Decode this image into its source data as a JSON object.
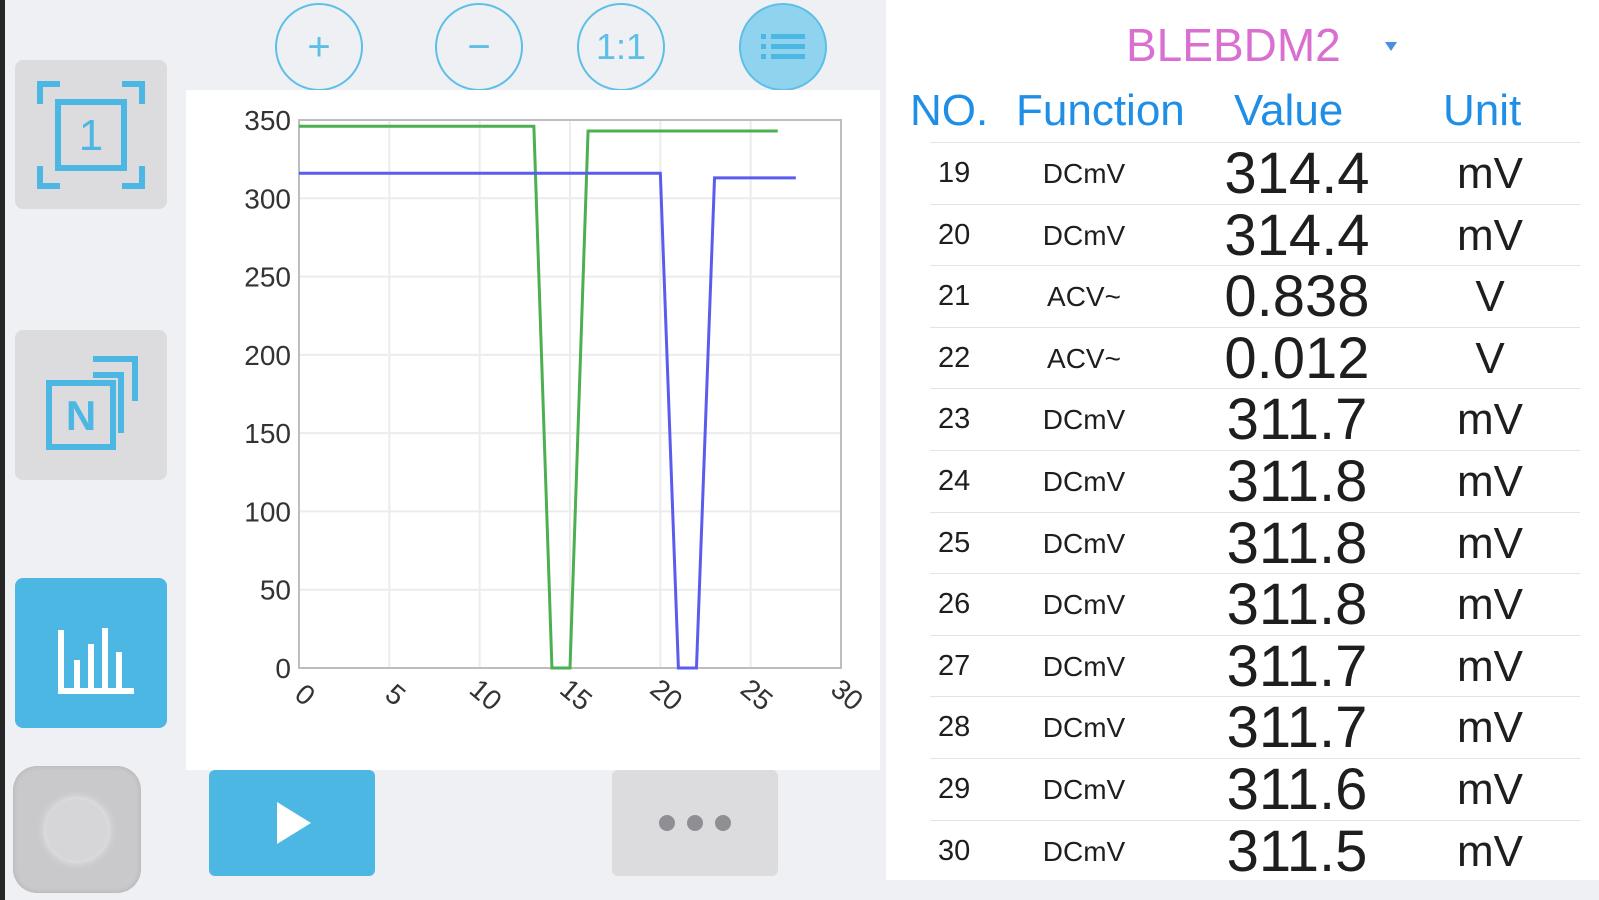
{
  "toolbar": {
    "zoom_in_label": "+",
    "zoom_out_label": "−",
    "reset_label": "1:1",
    "list_icon": "list-icon"
  },
  "sidebar": {
    "single_label": "1",
    "multi_label": "N",
    "single_icon": "single-channel-icon",
    "multi_icon": "multi-channel-icon",
    "chart_icon": "bar-chart-icon",
    "active_color": "#4cb7e2"
  },
  "bottom": {
    "play_icon": "play-icon",
    "more_icon": "more-dots-icon"
  },
  "device": {
    "name": "BLEBDM2"
  },
  "table": {
    "headers": [
      "NO.",
      "Function",
      "Value",
      "Unit"
    ],
    "rows": [
      {
        "no": "19",
        "function": "DCmV",
        "value": "314.4",
        "unit": "mV"
      },
      {
        "no": "20",
        "function": "DCmV",
        "value": "314.4",
        "unit": "mV"
      },
      {
        "no": "21",
        "function": "ACV~",
        "value": "0.838",
        "unit": "V"
      },
      {
        "no": "22",
        "function": "ACV~",
        "value": "0.012",
        "unit": "V"
      },
      {
        "no": "23",
        "function": "DCmV",
        "value": "311.7",
        "unit": "mV"
      },
      {
        "no": "24",
        "function": "DCmV",
        "value": "311.8",
        "unit": "mV"
      },
      {
        "no": "25",
        "function": "DCmV",
        "value": "311.8",
        "unit": "mV"
      },
      {
        "no": "26",
        "function": "DCmV",
        "value": "311.8",
        "unit": "mV"
      },
      {
        "no": "27",
        "function": "DCmV",
        "value": "311.7",
        "unit": "mV"
      },
      {
        "no": "28",
        "function": "DCmV",
        "value": "311.7",
        "unit": "mV"
      },
      {
        "no": "29",
        "function": "DCmV",
        "value": "311.6",
        "unit": "mV"
      },
      {
        "no": "30",
        "function": "DCmV",
        "value": "311.5",
        "unit": "mV"
      }
    ]
  },
  "chart_data": {
    "type": "line",
    "title": "",
    "xlabel": "",
    "ylabel": "",
    "xlim": [
      0,
      30
    ],
    "ylim": [
      0,
      350
    ],
    "x_ticks": [
      0,
      5,
      10,
      15,
      20,
      25,
      30
    ],
    "y_ticks": [
      0,
      50,
      100,
      150,
      200,
      250,
      300,
      350
    ],
    "grid": true,
    "series": [
      {
        "color": "#4caf50",
        "x": [
          0,
          13,
          14,
          15,
          16,
          17,
          26.5
        ],
        "y": [
          346,
          346,
          0,
          0,
          343,
          343,
          343
        ]
      },
      {
        "color": "#5b5bf0",
        "x": [
          0,
          20,
          21,
          22,
          23,
          27.5
        ],
        "y": [
          316,
          316,
          0,
          0,
          313,
          313
        ]
      }
    ]
  }
}
